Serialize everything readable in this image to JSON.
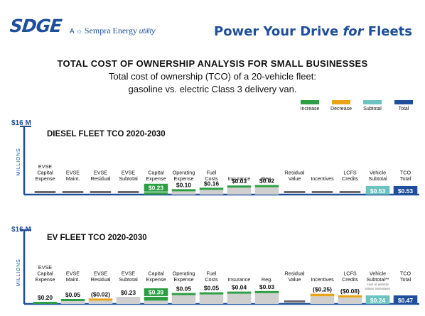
{
  "header": {
    "logo_text": "SDGE",
    "logo_tagline_prefix": "A",
    "logo_tagline_brand": "Sempra Energy",
    "logo_tagline_suffix": "utility",
    "headline_part1": "Power Your Drive ",
    "headline_italic": "for",
    "headline_part2": " Fleets"
  },
  "titles": {
    "main": "TOTAL COST OF OWNERSHIP ANALYSIS FOR SMALL BUSINESSES",
    "sub1": "Total cost of ownership (TCO) of a 20-vehicle fleet:",
    "sub2": "gasoline vs. electric Class 3 delivery van."
  },
  "legend": [
    {
      "label": "Increase",
      "color": "#2e9e44"
    },
    {
      "label": "Decrease",
      "color": "#e8a317"
    },
    {
      "label": "Subtotal",
      "color": "#6cc3c0"
    },
    {
      "label": "Total",
      "color": "#1f4f9a"
    }
  ],
  "colors": {
    "increase": "#2e9e44",
    "decrease": "#e8a317",
    "subtotal": "#6cc3c0",
    "total": "#1f4f9a",
    "base": "#cfcfcf",
    "axis": "#1f4f9a",
    "tiny_bar": "#6b6b6b"
  },
  "chart_data": [
    {
      "type": "bar",
      "subtype": "waterfall",
      "title": "DIESEL FLEET TCO 2020-2030",
      "ylabel": "MILLIONS",
      "ytick_label": "$16 M",
      "ylim": [
        0,
        16
      ],
      "categories": [
        {
          "label": [
            "EVSE",
            "Capital",
            "Expense"
          ],
          "kind": "none",
          "value": null,
          "value_label": ""
        },
        {
          "label": [
            "EVSE",
            "Maint."
          ],
          "kind": "none",
          "value": null,
          "value_label": ""
        },
        {
          "label": [
            "EVSE",
            "Residual"
          ],
          "kind": "none",
          "value": null,
          "value_label": ""
        },
        {
          "label": [
            "EVSE",
            "Subtotal"
          ],
          "kind": "none",
          "value": null,
          "value_label": ""
        },
        {
          "label": [
            "Capital",
            "Expense"
          ],
          "kind": "increase",
          "value": 0.23,
          "value_label": "$0.23"
        },
        {
          "label": [
            "Operating",
            "Expense"
          ],
          "kind": "increase",
          "value": 0.1,
          "value_label": "$0.10"
        },
        {
          "label": [
            "Fuel",
            "Costs"
          ],
          "kind": "increase",
          "value": 0.16,
          "value_label": "$0.16"
        },
        {
          "label": [
            "Insurance"
          ],
          "kind": "increase",
          "value": 0.03,
          "value_label": "$0.03"
        },
        {
          "label": [
            "Reg."
          ],
          "kind": "increase",
          "value": 0.02,
          "value_label": "$0.02"
        },
        {
          "label": [
            "Residual",
            "Value"
          ],
          "kind": "none",
          "value": null,
          "value_label": ""
        },
        {
          "label": [
            "Incentives"
          ],
          "kind": "none",
          "value": null,
          "value_label": ""
        },
        {
          "label": [
            "LCFS",
            "Credits"
          ],
          "kind": "none",
          "value": null,
          "value_label": ""
        },
        {
          "label": [
            "Vehicle",
            "Subtotal"
          ],
          "kind": "subtotal",
          "value": 0.53,
          "value_label": "$0.53"
        },
        {
          "label": [
            "TCO",
            "Total"
          ],
          "kind": "total",
          "value": 0.53,
          "value_label": "$0.53"
        }
      ]
    },
    {
      "type": "bar",
      "subtype": "waterfall",
      "title": "EV FLEET TCO 2020-2030",
      "ylabel": "MILLIONS",
      "ytick_label": "$16 M",
      "ylim": [
        0,
        16
      ],
      "categories": [
        {
          "label": [
            "EVSE",
            "Capital",
            "Expense"
          ],
          "kind": "increase",
          "value": 0.2,
          "value_label": "$0.20"
        },
        {
          "label": [
            "EVSE",
            "Maint."
          ],
          "kind": "increase",
          "value": 0.05,
          "value_label": "$0.05"
        },
        {
          "label": [
            "EVSE",
            "Residual"
          ],
          "kind": "decrease",
          "value": -0.02,
          "value_label": "($0.02)"
        },
        {
          "label": [
            "EVSE",
            "Subtotal"
          ],
          "kind": "subtotal_plain",
          "value": 0.23,
          "value_label": "$0.23"
        },
        {
          "label": [
            "Capital",
            "Expense"
          ],
          "kind": "increase",
          "value": 0.39,
          "value_label": "$0.39"
        },
        {
          "label": [
            "Operating",
            "Expense"
          ],
          "kind": "increase",
          "value": 0.05,
          "value_label": "$0.05"
        },
        {
          "label": [
            "Fuel",
            "Costs"
          ],
          "kind": "increase",
          "value": 0.05,
          "value_label": "$0.05"
        },
        {
          "label": [
            "Insurance"
          ],
          "kind": "increase",
          "value": 0.04,
          "value_label": "$0.04"
        },
        {
          "label": [
            "Reg."
          ],
          "kind": "increase",
          "value": 0.03,
          "value_label": "$0.03"
        },
        {
          "label": [
            "Residual",
            "Value"
          ],
          "kind": "none",
          "value": null,
          "value_label": ""
        },
        {
          "label": [
            "Incentives"
          ],
          "kind": "decrease",
          "value": -0.25,
          "value_label": "($0.25)"
        },
        {
          "label": [
            "LCFS",
            "Credits"
          ],
          "kind": "decrease",
          "value": -0.08,
          "value_label": "($0.08)"
        },
        {
          "label": [
            "Vehicle",
            "Subtotal**"
          ],
          "kind": "subtotal",
          "value": 0.24,
          "value_label": "$0.24",
          "note": [
            "cost of vehicle",
            "minus incentives"
          ]
        },
        {
          "label": [
            "TCO",
            "Total"
          ],
          "kind": "total",
          "value": 0.47,
          "value_label": "$0.47"
        }
      ]
    }
  ]
}
